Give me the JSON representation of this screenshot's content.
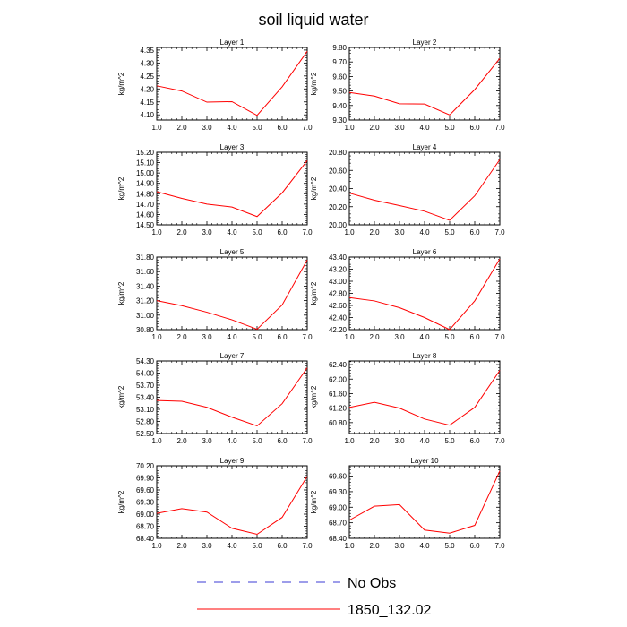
{
  "figure": {
    "title": "soil liquid water",
    "legend": [
      {
        "label": "No Obs",
        "color": "#3b3bd6",
        "style": "dashed"
      },
      {
        "label": "1850_132.02",
        "color": "#ff0000",
        "style": "solid"
      }
    ]
  },
  "chart_data": [
    {
      "type": "line",
      "title": "Layer 1",
      "ylabel": "kg/m^2",
      "x": [
        1,
        2,
        3,
        4,
        5,
        6,
        7
      ],
      "xticks": [
        "1.0",
        "2.0",
        "3.0",
        "4.0",
        "5.0",
        "6.0",
        "7.0"
      ],
      "xlim": [
        1,
        7
      ],
      "ylim": [
        4.08,
        4.36
      ],
      "yticks": [
        "4.10",
        "4.15",
        "4.20",
        "4.25",
        "4.30",
        "4.35"
      ],
      "series": [
        {
          "name": "1850_132.02",
          "color": "#ff0000",
          "values": [
            4.212,
            4.192,
            4.149,
            4.151,
            4.098,
            4.208,
            4.345
          ]
        }
      ]
    },
    {
      "type": "line",
      "title": "Layer 2",
      "ylabel": "kg/m^2",
      "x": [
        1,
        2,
        3,
        4,
        5,
        6,
        7
      ],
      "xticks": [
        "1.0",
        "2.0",
        "3.0",
        "4.0",
        "5.0",
        "6.0",
        "7.0"
      ],
      "xlim": [
        1,
        7
      ],
      "ylim": [
        9.3,
        9.8
      ],
      "yticks": [
        "9.30",
        "9.40",
        "9.50",
        "9.60",
        "9.70",
        "9.80"
      ],
      "series": [
        {
          "name": "1850_132.02",
          "color": "#ff0000",
          "values": [
            9.49,
            9.465,
            9.412,
            9.41,
            9.335,
            9.51,
            9.725
          ]
        }
      ]
    },
    {
      "type": "line",
      "title": "Layer 3",
      "ylabel": "kg/m^2",
      "x": [
        1,
        2,
        3,
        4,
        5,
        6,
        7
      ],
      "xticks": [
        "1.0",
        "2.0",
        "3.0",
        "4.0",
        "5.0",
        "6.0",
        "7.0"
      ],
      "xlim": [
        1,
        7
      ],
      "ylim": [
        14.5,
        15.2
      ],
      "yticks": [
        "14.50",
        "14.60",
        "14.70",
        "14.80",
        "14.90",
        "15.00",
        "15.10",
        "15.20"
      ],
      "series": [
        {
          "name": "1850_132.02",
          "color": "#ff0000",
          "values": [
            14.82,
            14.755,
            14.7,
            14.672,
            14.58,
            14.808,
            15.12
          ]
        }
      ]
    },
    {
      "type": "line",
      "title": "Layer 4",
      "ylabel": "kg/m^2",
      "x": [
        1,
        2,
        3,
        4,
        5,
        6,
        7
      ],
      "xticks": [
        "1.0",
        "2.0",
        "3.0",
        "4.0",
        "5.0",
        "6.0",
        "7.0"
      ],
      "xlim": [
        1,
        7
      ],
      "ylim": [
        20.0,
        20.8
      ],
      "yticks": [
        "20.00",
        "20.20",
        "20.40",
        "20.60",
        "20.80"
      ],
      "series": [
        {
          "name": "1850_132.02",
          "color": "#ff0000",
          "values": [
            20.35,
            20.272,
            20.212,
            20.15,
            20.05,
            20.32,
            20.72
          ]
        }
      ]
    },
    {
      "type": "line",
      "title": "Layer 5",
      "ylabel": "kg/m^2",
      "x": [
        1,
        2,
        3,
        4,
        5,
        6,
        7
      ],
      "xticks": [
        "1.0",
        "2.0",
        "3.0",
        "4.0",
        "5.0",
        "6.0",
        "7.0"
      ],
      "xlim": [
        1,
        7
      ],
      "ylim": [
        30.8,
        31.8
      ],
      "yticks": [
        "30.80",
        "31.00",
        "31.20",
        "31.40",
        "31.60",
        "31.80"
      ],
      "series": [
        {
          "name": "1850_132.02",
          "color": "#ff0000",
          "values": [
            31.2,
            31.13,
            31.04,
            30.935,
            30.805,
            31.14,
            31.76
          ]
        }
      ]
    },
    {
      "type": "line",
      "title": "Layer 6",
      "ylabel": "kg/m^2",
      "x": [
        1,
        2,
        3,
        4,
        5,
        6,
        7
      ],
      "xticks": [
        "1.0",
        "2.0",
        "3.0",
        "4.0",
        "5.0",
        "6.0",
        "7.0"
      ],
      "xlim": [
        1,
        7
      ],
      "ylim": [
        42.2,
        43.4
      ],
      "yticks": [
        "42.20",
        "42.40",
        "42.60",
        "42.80",
        "43.00",
        "43.20",
        "43.40"
      ],
      "series": [
        {
          "name": "1850_132.02",
          "color": "#ff0000",
          "values": [
            42.73,
            42.675,
            42.563,
            42.4,
            42.2,
            42.675,
            43.37
          ]
        }
      ]
    },
    {
      "type": "line",
      "title": "Layer 7",
      "ylabel": "kg/m^2",
      "x": [
        1,
        2,
        3,
        4,
        5,
        6,
        7
      ],
      "xticks": [
        "1.0",
        "2.0",
        "3.0",
        "4.0",
        "5.0",
        "6.0",
        "7.0"
      ],
      "xlim": [
        1,
        7
      ],
      "ylim": [
        52.5,
        54.3
      ],
      "yticks": [
        "52.50",
        "52.80",
        "53.10",
        "53.40",
        "53.70",
        "54.00",
        "54.30"
      ],
      "series": [
        {
          "name": "1850_132.02",
          "color": "#ff0000",
          "values": [
            53.32,
            53.3,
            53.15,
            52.905,
            52.69,
            53.24,
            54.13
          ]
        }
      ]
    },
    {
      "type": "line",
      "title": "Layer 8",
      "ylabel": "kg/m^2",
      "x": [
        1,
        2,
        3,
        4,
        5,
        6,
        7
      ],
      "xticks": [
        "1.0",
        "2.0",
        "3.0",
        "4.0",
        "5.0",
        "6.0",
        "7.0"
      ],
      "xlim": [
        1,
        7
      ],
      "ylim": [
        60.5,
        62.5
      ],
      "yticks": [
        "60.80",
        "61.20",
        "61.60",
        "62.00",
        "62.40"
      ],
      "series": [
        {
          "name": "1850_132.02",
          "color": "#ff0000",
          "values": [
            61.22,
            61.36,
            61.2,
            60.9,
            60.73,
            61.22,
            62.24
          ]
        }
      ]
    },
    {
      "type": "line",
      "title": "Layer 9",
      "ylabel": "kg/m^2",
      "x": [
        1,
        2,
        3,
        4,
        5,
        6,
        7
      ],
      "xticks": [
        "1.0",
        "2.0",
        "3.0",
        "4.0",
        "5.0",
        "6.0",
        "7.0"
      ],
      "xlim": [
        1,
        7
      ],
      "ylim": [
        68.4,
        70.2
      ],
      "yticks": [
        "68.40",
        "68.70",
        "69.00",
        "69.30",
        "69.60",
        "69.90",
        "70.20"
      ],
      "series": [
        {
          "name": "1850_132.02",
          "color": "#ff0000",
          "values": [
            69.02,
            69.135,
            69.05,
            68.65,
            68.5,
            68.92,
            69.94
          ]
        }
      ]
    },
    {
      "type": "line",
      "title": "Layer 10",
      "ylabel": "kg/m^2",
      "x": [
        1,
        2,
        3,
        4,
        5,
        6,
        7
      ],
      "xticks": [
        "1.0",
        "2.0",
        "3.0",
        "4.0",
        "5.0",
        "6.0",
        "7.0"
      ],
      "xlim": [
        1,
        7
      ],
      "ylim": [
        68.4,
        69.8
      ],
      "yticks": [
        "68.40",
        "68.70",
        "69.00",
        "69.30",
        "69.60"
      ],
      "series": [
        {
          "name": "1850_132.02",
          "color": "#ff0000",
          "values": [
            68.75,
            69.02,
            69.05,
            68.56,
            68.5,
            68.65,
            69.7
          ]
        }
      ]
    }
  ]
}
